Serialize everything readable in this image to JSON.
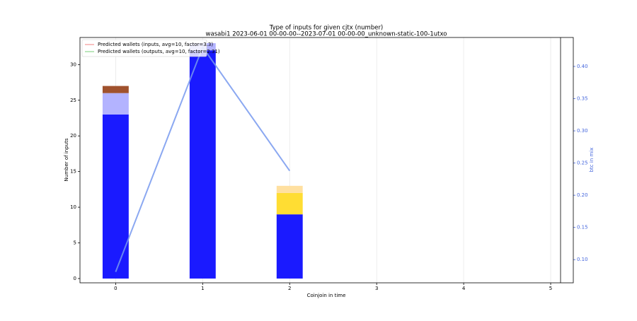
{
  "chart_data": {
    "type": "bar",
    "title": "Type of inputs for given cjtx (number)",
    "subtitle": "wasabi1 2023-06-01 00-00-00--2023-07-01 00-00-00_unknown-static-100-1utxo",
    "x_label": "Coinjoin in time",
    "y_label": "Number of inputs",
    "y2_label": "btc in mix",
    "x": [
      0,
      1,
      2
    ],
    "series": [
      {
        "color": "#1a1aff",
        "values": [
          23,
          32,
          9
        ]
      },
      {
        "color": "#b3b3ff",
        "values": [
          3,
          1,
          null
        ]
      },
      {
        "color": "#a0522d",
        "values": [
          1,
          null,
          null
        ]
      },
      {
        "color": "#ffdd33",
        "values": [
          null,
          null,
          3
        ]
      },
      {
        "color": "#ffe0a0",
        "values": [
          null,
          null,
          1
        ]
      },
      {
        "type": "line",
        "axis": "y2",
        "color": "#7799ee",
        "values": [
          0.081,
          0.43,
          0.238
        ]
      }
    ],
    "legend": [
      {
        "name": "Predicted wallets (inputs, avg=10, factor=3.3)",
        "color": "#f08080"
      },
      {
        "name": "Predicted wallets (outputs, avg=10, factor=2.31)",
        "color": "#77cc77"
      }
    ],
    "legend_position": "upper left",
    "xlim": [
      -0.41,
      5.26
    ],
    "xticks": [
      0,
      1,
      2,
      3,
      4,
      5
    ],
    "ylim": [
      -0.6,
      33.8
    ],
    "yticks": [
      0,
      5,
      10,
      15,
      20,
      25,
      30
    ],
    "y2lim": [
      0.064,
      0.445
    ],
    "y2ticks": [
      {
        "value": 0.1,
        "label": "0.10"
      },
      {
        "value": 0.15,
        "label": "0.15"
      },
      {
        "value": 0.2,
        "label": "0.20"
      },
      {
        "value": 0.25,
        "label": "0.25"
      },
      {
        "value": 0.3,
        "label": "0.30"
      },
      {
        "value": 0.35,
        "label": "0.35"
      },
      {
        "value": 0.4,
        "label": "0.40"
      }
    ],
    "y2_color": "#4466dd",
    "bar_width": 0.3,
    "grid": true
  }
}
